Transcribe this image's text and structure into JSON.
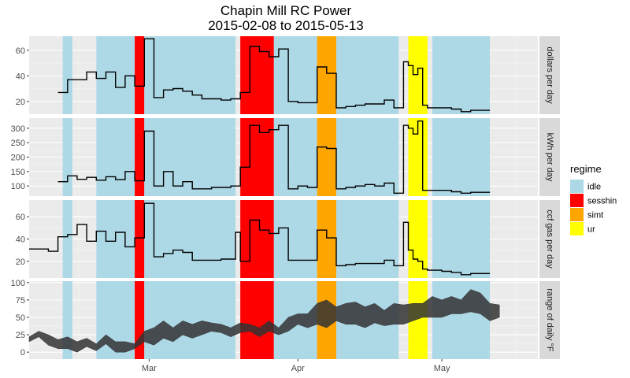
{
  "chart_data": {
    "type": "line",
    "title": "Chapin Mill RC Power",
    "subtitle": "2015-02-08 to 2015-05-13",
    "x_axis": {
      "type": "day-of-year-2015",
      "range": [
        35,
        141
      ],
      "ticks": [
        {
          "label": "Mar",
          "day": 60
        },
        {
          "label": "Apr",
          "day": 91
        },
        {
          "label": "May",
          "day": 121
        }
      ]
    },
    "legend": {
      "title": "regime",
      "position": "right",
      "entries": [
        {
          "name": "idle",
          "color": "#add8e6"
        },
        {
          "name": "sesshin",
          "color": "#ff0000"
        },
        {
          "name": "simt",
          "color": "#ffa500"
        },
        {
          "name": "ur",
          "color": "#ffff00"
        }
      ]
    },
    "regimes": [
      {
        "regime": "idle",
        "start": 42,
        "end": 44
      },
      {
        "regime": "idle",
        "start": 49,
        "end": 57
      },
      {
        "regime": "sesshin",
        "start": 57,
        "end": 59
      },
      {
        "regime": "idle",
        "start": 59,
        "end": 78
      },
      {
        "regime": "sesshin",
        "start": 79,
        "end": 86
      },
      {
        "regime": "idle",
        "start": 86,
        "end": 95
      },
      {
        "regime": "simt",
        "start": 95,
        "end": 99
      },
      {
        "regime": "idle",
        "start": 99,
        "end": 112
      },
      {
        "regime": "ur",
        "start": 114,
        "end": 118
      },
      {
        "regime": "idle",
        "start": 119,
        "end": 131
      }
    ],
    "panels": [
      {
        "strip": "dollars per day",
        "ylim": [
          10,
          71
        ],
        "yticks": [
          20,
          40,
          60
        ],
        "series": {
          "x": [
            41,
            43,
            45,
            47,
            49,
            51,
            53,
            55,
            57,
            59,
            61,
            63,
            65,
            67,
            69,
            71,
            73,
            75,
            77,
            79,
            81,
            83,
            85,
            87,
            89,
            91,
            93,
            95,
            97,
            99,
            101,
            103,
            105,
            107,
            109,
            111,
            113,
            114,
            115,
            116,
            117,
            118,
            119,
            121,
            123,
            125,
            127,
            129
          ],
          "y": [
            27,
            37,
            37,
            43,
            38,
            43,
            31,
            40,
            32,
            69,
            23,
            29,
            30,
            28,
            25,
            22,
            22,
            21,
            22,
            27,
            63,
            59,
            55,
            61,
            20,
            19,
            19,
            47,
            42,
            15,
            16,
            17,
            18,
            18,
            21,
            15,
            51,
            48,
            41,
            46,
            17,
            15,
            15,
            15,
            14,
            12,
            13,
            13
          ]
        }
      },
      {
        "strip": "kWh per day",
        "ylim": [
          65,
          335
        ],
        "yticks": [
          100,
          150,
          200,
          250,
          300
        ],
        "series": {
          "x": [
            41,
            43,
            45,
            47,
            49,
            51,
            53,
            55,
            57,
            59,
            61,
            63,
            65,
            67,
            69,
            71,
            73,
            75,
            77,
            79,
            81,
            83,
            85,
            87,
            89,
            91,
            93,
            95,
            97,
            99,
            101,
            103,
            105,
            107,
            109,
            111,
            113,
            114,
            115,
            116,
            117,
            118,
            119,
            121,
            123,
            125,
            127,
            129
          ],
          "y": [
            115,
            135,
            123,
            130,
            120,
            132,
            122,
            150,
            118,
            290,
            100,
            150,
            100,
            115,
            90,
            90,
            95,
            95,
            100,
            165,
            310,
            285,
            295,
            310,
            90,
            100,
            95,
            235,
            230,
            90,
            95,
            100,
            105,
            100,
            110,
            75,
            310,
            300,
            280,
            325,
            85,
            85,
            85,
            85,
            80,
            75,
            78,
            78
          ]
        }
      },
      {
        "strip": "ccf gas per day",
        "ylim": [
          5,
          75
        ],
        "yticks": [
          20,
          40,
          60
        ],
        "series": {
          "x": [
            35,
            37,
            39,
            41,
            43,
            45,
            47,
            49,
            51,
            53,
            55,
            57,
            59,
            61,
            63,
            65,
            67,
            69,
            71,
            73,
            75,
            77,
            78,
            79,
            81,
            83,
            85,
            87,
            89,
            91,
            93,
            95,
            97,
            99,
            101,
            103,
            105,
            107,
            109,
            111,
            113,
            114,
            115,
            116,
            117,
            118,
            119,
            121,
            123,
            125,
            127,
            129
          ],
          "y": [
            31,
            31,
            29,
            42,
            44,
            53,
            38,
            47,
            38,
            46,
            33,
            41,
            72,
            24,
            27,
            30,
            28,
            21,
            21,
            21,
            22,
            22,
            46,
            20,
            57,
            48,
            45,
            50,
            21,
            21,
            21,
            48,
            41,
            16,
            17,
            18,
            18,
            18,
            21,
            16,
            55,
            30,
            22,
            20,
            13,
            12,
            12,
            11,
            10,
            8,
            9,
            9
          ]
        }
      },
      {
        "strip": "range of daily °F",
        "ylim": [
          -10,
          102
        ],
        "yticks": [
          0,
          25,
          50,
          75,
          100
        ],
        "ribbon": {
          "x": [
            35,
            37,
            39,
            41,
            43,
            45,
            47,
            49,
            51,
            53,
            55,
            57,
            59,
            61,
            63,
            65,
            67,
            69,
            71,
            73,
            75,
            77,
            79,
            81,
            83,
            85,
            87,
            89,
            91,
            93,
            95,
            97,
            99,
            101,
            103,
            105,
            107,
            109,
            111,
            113,
            115,
            117,
            119,
            121,
            123,
            125,
            127,
            129,
            131,
            133
          ],
          "low": [
            15,
            22,
            10,
            5,
            5,
            0,
            8,
            2,
            12,
            0,
            0,
            5,
            15,
            10,
            20,
            15,
            25,
            20,
            25,
            30,
            28,
            22,
            28,
            30,
            22,
            30,
            25,
            30,
            40,
            35,
            40,
            35,
            45,
            40,
            40,
            35,
            42,
            38,
            40,
            40,
            45,
            50,
            50,
            50,
            55,
            55,
            58,
            55,
            45,
            50
          ],
          "high": [
            22,
            30,
            25,
            18,
            22,
            15,
            20,
            12,
            25,
            15,
            15,
            12,
            30,
            35,
            45,
            35,
            45,
            40,
            45,
            42,
            40,
            35,
            42,
            40,
            35,
            45,
            35,
            50,
            55,
            55,
            70,
            75,
            65,
            70,
            72,
            65,
            70,
            60,
            70,
            68,
            70,
            70,
            80,
            75,
            80,
            75,
            90,
            85,
            70,
            68
          ]
        }
      }
    ]
  }
}
